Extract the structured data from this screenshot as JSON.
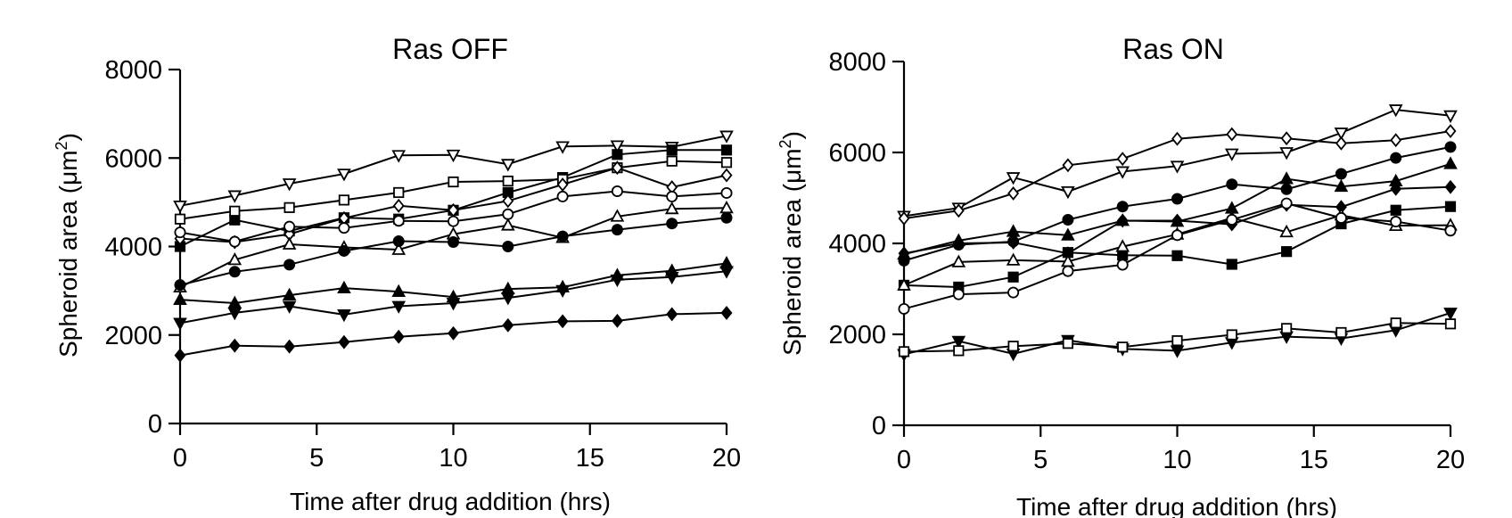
{
  "chart_data": [
    {
      "type": "line",
      "title": "Ras OFF",
      "xlabel": "Time after drug addition (hrs)",
      "ylabel_prefix": "Spheroid area (",
      "ylabel_unit": "μm",
      "ylabel_sup": "2",
      "ylabel_suffix": ")",
      "xlim": [
        0,
        20
      ],
      "ylim": [
        0,
        8000
      ],
      "xticks": [
        0,
        5,
        10,
        15,
        20
      ],
      "yticks": [
        0,
        2000,
        4000,
        6000,
        8000
      ],
      "x": [
        0,
        2,
        4,
        6,
        8,
        10,
        12,
        14,
        16,
        18,
        20
      ],
      "series": [
        {
          "name": "open-triangle-down",
          "marker": "triangle-down",
          "fill": "open",
          "values": [
            4920,
            5150,
            5420,
            5640,
            6060,
            6070,
            5860,
            6260,
            6280,
            6250,
            6500
          ]
        },
        {
          "name": "filled-square",
          "marker": "square",
          "fill": "filled",
          "values": [
            4000,
            4600,
            4350,
            4650,
            4620,
            4820,
            5220,
            5560,
            6080,
            6180,
            6180
          ]
        },
        {
          "name": "open-square",
          "marker": "square",
          "fill": "open",
          "values": [
            4620,
            4800,
            4880,
            5050,
            5220,
            5460,
            5480,
            5520,
            5780,
            5930,
            5900
          ]
        },
        {
          "name": "open-diamond",
          "marker": "diamond",
          "fill": "open",
          "values": [
            4180,
            4100,
            4280,
            4640,
            4920,
            4820,
            5030,
            5400,
            5780,
            5340,
            5610
          ]
        },
        {
          "name": "open-circle",
          "marker": "circle",
          "fill": "open",
          "values": [
            4320,
            4110,
            4450,
            4420,
            4580,
            4570,
            4730,
            5130,
            5250,
            5130,
            5210
          ]
        },
        {
          "name": "open-triangle-up",
          "marker": "triangle-up",
          "fill": "open",
          "values": [
            3080,
            3700,
            4050,
            3980,
            3930,
            4280,
            4480,
            4200,
            4680,
            4850,
            4870
          ]
        },
        {
          "name": "filled-circle",
          "marker": "circle",
          "fill": "filled",
          "values": [
            3130,
            3430,
            3590,
            3900,
            4120,
            4100,
            4000,
            4230,
            4380,
            4520,
            4650
          ]
        },
        {
          "name": "filled-triangle-up",
          "marker": "triangle-up",
          "fill": "filled",
          "values": [
            2800,
            2720,
            2900,
            3060,
            2980,
            2860,
            3040,
            3080,
            3350,
            3450,
            3620
          ]
        },
        {
          "name": "filled-triangle-down",
          "marker": "triangle-down",
          "fill": "filled",
          "values": [
            2270,
            2500,
            2650,
            2460,
            2650,
            2720,
            2840,
            3010,
            3250,
            3310,
            3440
          ]
        },
        {
          "name": "filled-diamond",
          "marker": "diamond",
          "fill": "filled",
          "values": [
            1540,
            1760,
            1740,
            1840,
            1960,
            2040,
            2220,
            2310,
            2320,
            2470,
            2500
          ]
        }
      ]
    },
    {
      "type": "line",
      "title": "Ras ON",
      "xlabel": "Time after drug addition (hrs)",
      "ylabel_prefix": "Spheroid area (",
      "ylabel_unit": "μm",
      "ylabel_sup": "2",
      "ylabel_suffix": ")",
      "xlim": [
        0,
        20
      ],
      "ylim": [
        0,
        8000
      ],
      "xticks": [
        0,
        5,
        10,
        15,
        20
      ],
      "yticks": [
        0,
        2000,
        4000,
        6000,
        8000
      ],
      "x": [
        0,
        2,
        4,
        6,
        8,
        10,
        12,
        14,
        16,
        18,
        20
      ],
      "series": [
        {
          "name": "open-triangle-down",
          "marker": "triangle-down",
          "fill": "open",
          "values": [
            4600,
            4780,
            5450,
            5140,
            5580,
            5700,
            5970,
            6000,
            6430,
            6940,
            6810
          ]
        },
        {
          "name": "open-diamond",
          "marker": "diamond",
          "fill": "open",
          "values": [
            4550,
            4720,
            5100,
            5720,
            5860,
            6300,
            6400,
            6310,
            6200,
            6270,
            6470
          ]
        },
        {
          "name": "filled-circle",
          "marker": "circle",
          "fill": "filled",
          "values": [
            3620,
            3970,
            4040,
            4520,
            4810,
            4980,
            5300,
            5190,
            5530,
            5880,
            6120
          ]
        },
        {
          "name": "filled-triangle-up",
          "marker": "triangle-up",
          "fill": "filled",
          "values": [
            3760,
            4060,
            4260,
            4180,
            4500,
            4480,
            4770,
            5420,
            5250,
            5370,
            5750
          ]
        },
        {
          "name": "filled-diamond",
          "marker": "diamond",
          "fill": "filled",
          "values": [
            3780,
            4000,
            4020,
            3780,
            4500,
            4500,
            4420,
            4850,
            4800,
            5200,
            5240
          ]
        },
        {
          "name": "filled-square",
          "marker": "square",
          "fill": "filled",
          "values": [
            3080,
            3040,
            3260,
            3800,
            3740,
            3730,
            3540,
            3820,
            4430,
            4730,
            4810
          ]
        },
        {
          "name": "open-triangle-up",
          "marker": "triangle-up",
          "fill": "open",
          "values": [
            3080,
            3590,
            3630,
            3600,
            3930,
            4200,
            4560,
            4250,
            4620,
            4390,
            4400
          ]
        },
        {
          "name": "open-circle",
          "marker": "circle",
          "fill": "open",
          "values": [
            2560,
            2880,
            2920,
            3390,
            3530,
            4180,
            4520,
            4880,
            4560,
            4480,
            4280
          ]
        },
        {
          "name": "filled-triangle-down",
          "marker": "triangle-down",
          "fill": "filled",
          "values": [
            1560,
            1850,
            1570,
            1870,
            1680,
            1640,
            1820,
            1950,
            1910,
            2090,
            2470
          ]
        },
        {
          "name": "open-square",
          "marker": "square",
          "fill": "open",
          "values": [
            1620,
            1640,
            1740,
            1800,
            1720,
            1860,
            1990,
            2130,
            2040,
            2250,
            2230
          ]
        }
      ]
    }
  ]
}
